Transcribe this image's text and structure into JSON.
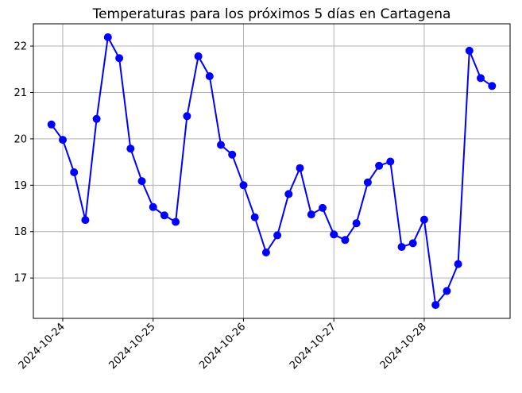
{
  "chart_data": {
    "type": "line",
    "title": "Temperaturas para los próximos 5 días en Cartagena",
    "xlabel": "",
    "ylabel": "",
    "x": [
      "2024-10-23 21:00",
      "2024-10-24 00:00",
      "2024-10-24 03:00",
      "2024-10-24 06:00",
      "2024-10-24 09:00",
      "2024-10-24 12:00",
      "2024-10-24 15:00",
      "2024-10-24 18:00",
      "2024-10-24 21:00",
      "2024-10-25 00:00",
      "2024-10-25 03:00",
      "2024-10-25 06:00",
      "2024-10-25 09:00",
      "2024-10-25 12:00",
      "2024-10-25 15:00",
      "2024-10-25 18:00",
      "2024-10-25 21:00",
      "2024-10-26 00:00",
      "2024-10-26 03:00",
      "2024-10-26 06:00",
      "2024-10-26 09:00",
      "2024-10-26 12:00",
      "2024-10-26 15:00",
      "2024-10-26 18:00",
      "2024-10-26 21:00",
      "2024-10-27 00:00",
      "2024-10-27 03:00",
      "2024-10-27 06:00",
      "2024-10-27 09:00",
      "2024-10-27 12:00",
      "2024-10-27 15:00",
      "2024-10-27 18:00",
      "2024-10-27 21:00",
      "2024-10-28 00:00",
      "2024-10-28 03:00",
      "2024-10-28 06:00",
      "2024-10-28 09:00",
      "2024-10-28 12:00",
      "2024-10-28 15:00",
      "2024-10-28 18:00"
    ],
    "values": [
      20.31,
      19.98,
      19.28,
      18.25,
      20.43,
      22.19,
      21.74,
      19.79,
      19.09,
      18.53,
      18.35,
      18.21,
      20.49,
      21.78,
      21.35,
      19.87,
      19.66,
      19.0,
      18.31,
      17.55,
      17.92,
      18.81,
      19.37,
      18.37,
      18.51,
      17.94,
      17.82,
      18.18,
      19.06,
      19.42,
      19.51,
      17.67,
      17.75,
      18.26,
      16.42,
      16.72,
      17.3,
      21.9,
      21.31,
      21.14
    ],
    "xticks": [
      "2024-10-24",
      "2024-10-25",
      "2024-10-26",
      "2024-10-27",
      "2024-10-28"
    ],
    "yticks": [
      17,
      18,
      19,
      20,
      21,
      22
    ],
    "ylim": [
      16.13,
      22.48
    ],
    "xlim": [
      "2024-10-23 16:12",
      "2024-10-28 22:48"
    ],
    "grid": true,
    "legend": "none",
    "line_color": "#0000ff",
    "marker_color": "#0000ff"
  }
}
